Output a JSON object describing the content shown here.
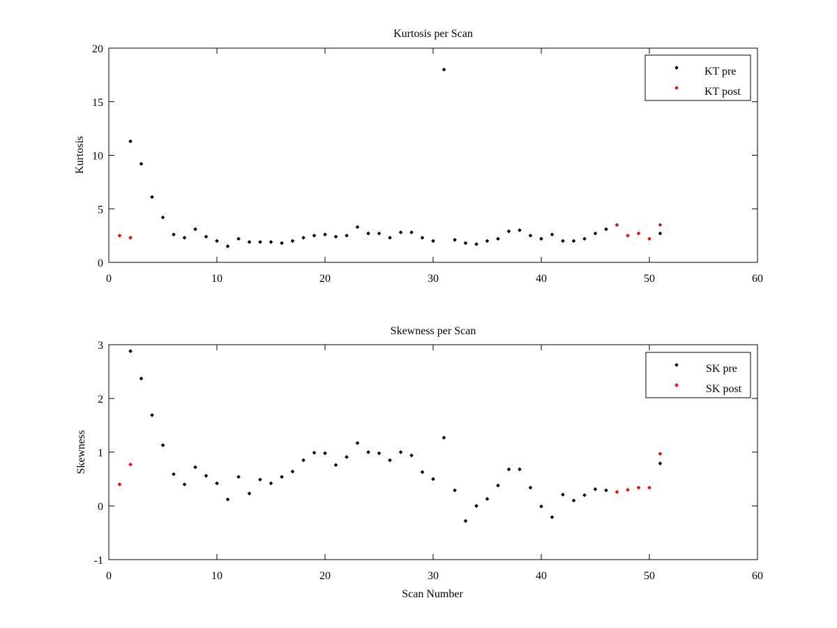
{
  "chart_data": [
    {
      "type": "scatter",
      "title": "Kurtosis per Scan",
      "xlabel": "",
      "ylabel": "Kurtosis",
      "xlim": [
        0,
        60
      ],
      "ylim": [
        0,
        20
      ],
      "xticks": [
        0,
        10,
        20,
        30,
        40,
        50,
        60
      ],
      "yticks": [
        0,
        5,
        10,
        15,
        20
      ],
      "grid": false,
      "legend_position": "top-right",
      "series": [
        {
          "name": "KT pre",
          "color": "#000000",
          "x": [
            2,
            3,
            4,
            5,
            6,
            7,
            8,
            9,
            10,
            11,
            12,
            13,
            14,
            15,
            16,
            17,
            18,
            19,
            20,
            21,
            22,
            23,
            24,
            25,
            26,
            27,
            28,
            29,
            30,
            31,
            32,
            33,
            34,
            35,
            36,
            37,
            38,
            39,
            40,
            41,
            42,
            43,
            44,
            45,
            46,
            51
          ],
          "y": [
            11.3,
            9.2,
            6.1,
            4.2,
            2.6,
            2.3,
            3.1,
            2.4,
            2.0,
            1.5,
            2.2,
            1.9,
            1.9,
            1.9,
            1.8,
            2.0,
            2.3,
            2.5,
            2.6,
            2.4,
            2.5,
            3.3,
            2.7,
            2.7,
            2.3,
            2.8,
            2.8,
            2.3,
            2.0,
            18.0,
            2.1,
            1.8,
            1.7,
            2.0,
            2.2,
            2.9,
            3.0,
            2.5,
            2.2,
            2.6,
            2.0,
            2.0,
            2.2,
            2.7,
            3.1,
            2.7
          ]
        },
        {
          "name": "KT post",
          "color": "#ff0000",
          "x": [
            1,
            2,
            47,
            48,
            49,
            50,
            51
          ],
          "y": [
            2.5,
            2.3,
            3.5,
            2.5,
            2.7,
            2.2,
            3.5
          ]
        }
      ]
    },
    {
      "type": "scatter",
      "title": "Skewness per Scan",
      "xlabel": "Scan Number",
      "ylabel": "Skewness",
      "xlim": [
        0,
        60
      ],
      "ylim": [
        -1,
        3
      ],
      "xticks": [
        0,
        10,
        20,
        30,
        40,
        50,
        60
      ],
      "yticks": [
        -1,
        0,
        1,
        2,
        3
      ],
      "grid": false,
      "legend_position": "top-right",
      "series": [
        {
          "name": "SK pre",
          "color": "#000000",
          "x": [
            2,
            3,
            4,
            5,
            6,
            7,
            8,
            9,
            10,
            11,
            12,
            13,
            14,
            15,
            16,
            17,
            18,
            19,
            20,
            21,
            22,
            23,
            24,
            25,
            26,
            27,
            28,
            29,
            30,
            31,
            32,
            33,
            34,
            35,
            36,
            37,
            38,
            39,
            40,
            41,
            42,
            43,
            44,
            45,
            46,
            51
          ],
          "y": [
            2.88,
            2.37,
            1.69,
            1.13,
            0.59,
            0.4,
            0.72,
            0.56,
            0.42,
            0.12,
            0.54,
            0.23,
            0.49,
            0.42,
            0.54,
            0.64,
            0.85,
            0.99,
            0.98,
            0.76,
            0.91,
            1.17,
            1.0,
            0.98,
            0.85,
            1.0,
            0.94,
            0.63,
            0.5,
            1.27,
            0.29,
            -0.28,
            0.0,
            0.13,
            0.38,
            0.68,
            0.68,
            0.34,
            -0.01,
            -0.21,
            0.21,
            0.1,
            0.2,
            0.31,
            0.29,
            0.79
          ]
        },
        {
          "name": "SK post",
          "color": "#ff0000",
          "x": [
            1,
            2,
            47,
            48,
            49,
            50,
            51
          ],
          "y": [
            0.4,
            0.77,
            0.26,
            0.3,
            0.34,
            0.34,
            0.97
          ]
        }
      ]
    }
  ]
}
